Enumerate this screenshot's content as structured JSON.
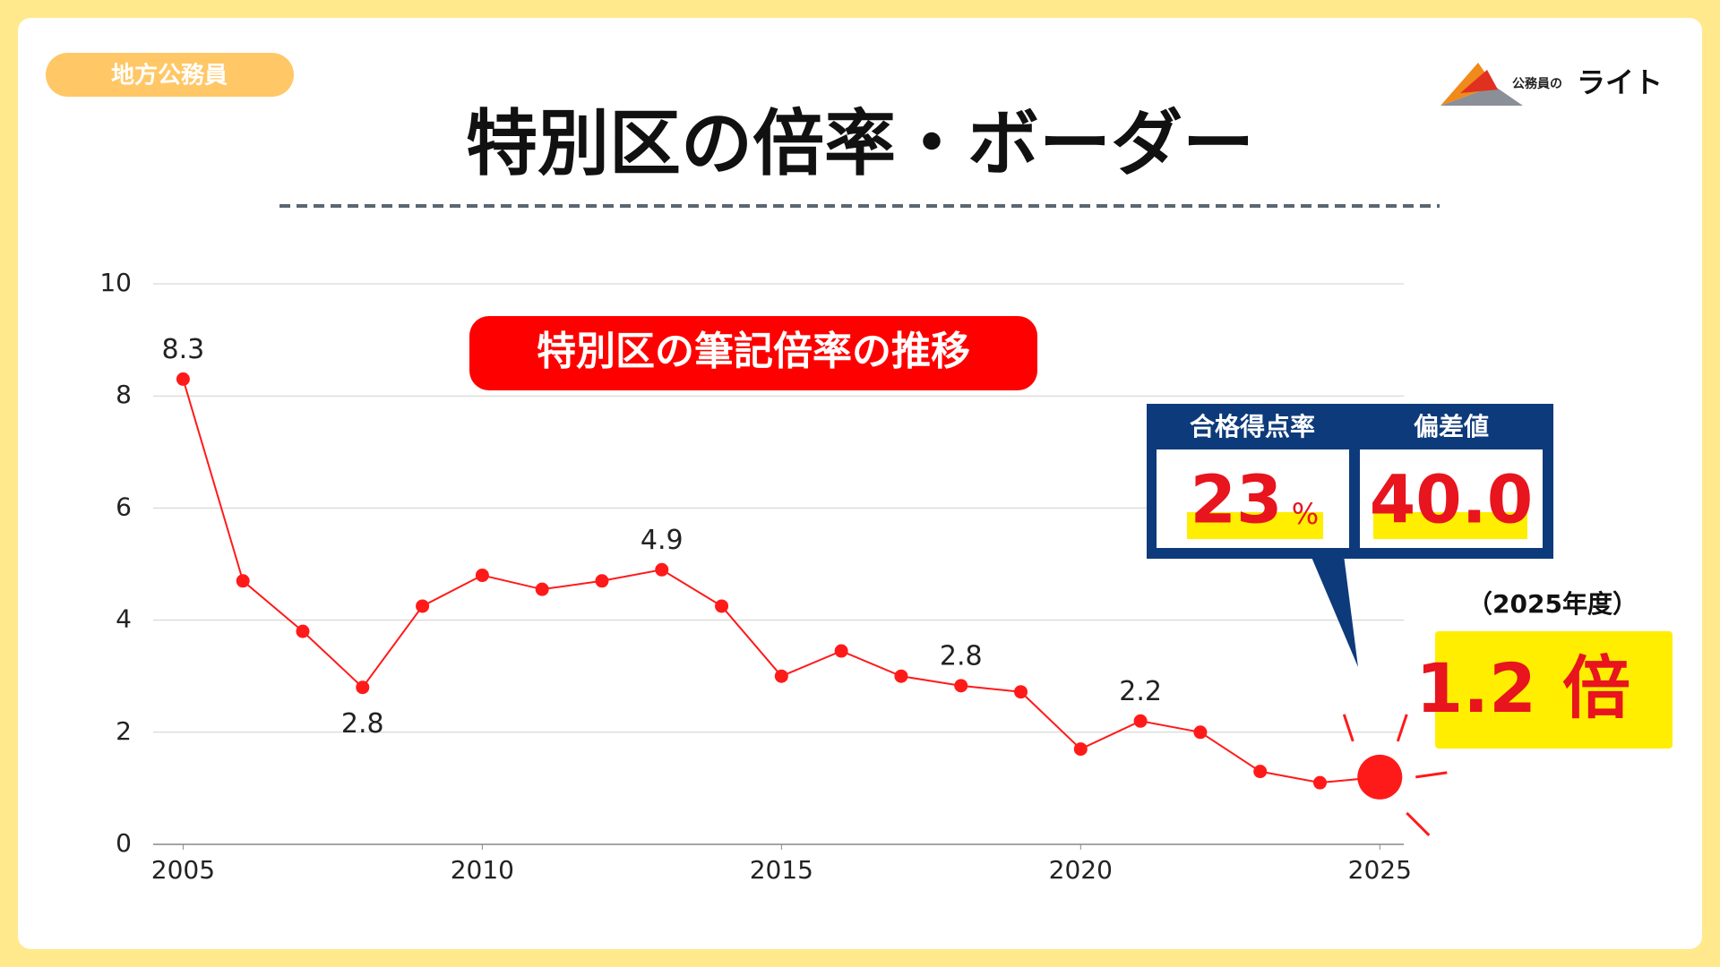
{
  "badge": "地方公務員",
  "title": "特別区の倍率・ボーダー",
  "brand": {
    "small": "公務員の",
    "name": "ライト"
  },
  "scores": {
    "rate": {
      "label": "合格得点率",
      "value": "23",
      "unit": "%"
    },
    "deviation": {
      "label": "偏差値",
      "value": "40.0"
    }
  },
  "callout": {
    "period": "（2025年度）",
    "value": "1.2",
    "unit": "倍"
  },
  "chart_data": {
    "type": "line",
    "title": "特別区の筆記倍率の推移",
    "color": "#ff1a1a",
    "x": [
      2005,
      2006,
      2007,
      2008,
      2009,
      2010,
      2011,
      2012,
      2013,
      2014,
      2015,
      2016,
      2017,
      2018,
      2019,
      2020,
      2021,
      2022,
      2023,
      2024,
      2025
    ],
    "values": [
      8.3,
      4.7,
      3.8,
      2.8,
      4.25,
      4.8,
      4.55,
      4.7,
      4.9,
      4.25,
      3.0,
      3.45,
      3.0,
      2.83,
      2.72,
      1.7,
      2.2,
      2.0,
      1.3,
      1.1,
      1.2
    ],
    "value_labels": [
      "8.3",
      null,
      null,
      "2.8",
      null,
      null,
      null,
      null,
      "4.9",
      null,
      null,
      null,
      null,
      "2.8",
      null,
      null,
      "2.2",
      null,
      null,
      null,
      null
    ],
    "xlim": [
      2004.5,
      2025.4
    ],
    "xticks": [
      2005,
      2010,
      2015,
      2020,
      2025
    ],
    "ylim": [
      0,
      10
    ],
    "yticks": [
      0,
      2,
      4,
      6,
      8,
      10
    ],
    "grid": true
  }
}
